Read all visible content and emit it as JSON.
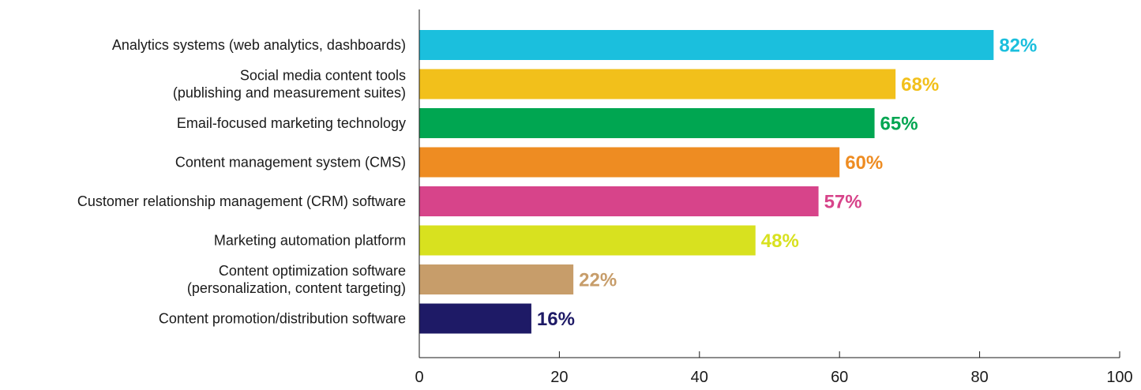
{
  "chart_data": {
    "type": "bar",
    "orientation": "horizontal",
    "categories": [
      [
        "Analytics systems (web analytics, dashboards)"
      ],
      [
        "Social media content tools",
        "(publishing and measurement suites)"
      ],
      [
        "Email-focused marketing technology"
      ],
      [
        "Content management system (CMS)"
      ],
      [
        "Customer relationship management (CRM) software"
      ],
      [
        "Marketing automation platform"
      ],
      [
        "Content optimization software",
        "(personalization, content targeting)"
      ],
      [
        "Content promotion/distribution software"
      ]
    ],
    "values": [
      82,
      68,
      65,
      60,
      57,
      48,
      22,
      16
    ],
    "value_labels": [
      "82%",
      "68%",
      "65%",
      "60%",
      "57%",
      "48%",
      "22%",
      "16%"
    ],
    "colors": [
      "#1bbfdd",
      "#f2c01b",
      "#00a651",
      "#ee8c22",
      "#d7448a",
      "#d8e11f",
      "#c79d6a",
      "#1e1a66"
    ],
    "xlim": [
      0,
      100
    ],
    "xticks": [
      0,
      20,
      40,
      60,
      80,
      100
    ],
    "xtick_labels": [
      "0",
      "20",
      "40",
      "60",
      "80",
      "100"
    ],
    "title": "",
    "xlabel": "",
    "ylabel": "",
    "grid": false,
    "legend": "none"
  }
}
